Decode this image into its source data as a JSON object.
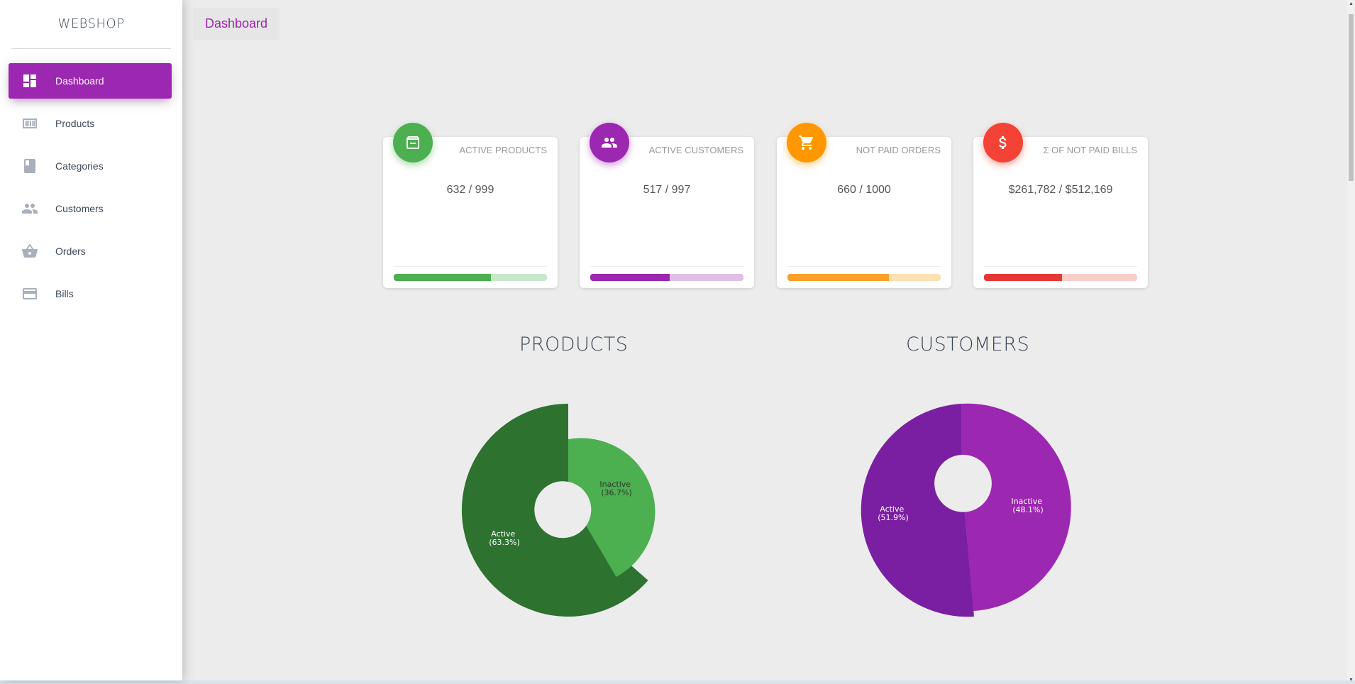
{
  "brand": "WEBSHOP",
  "breadcrumb": "Dashboard",
  "nav": [
    {
      "label": "Dashboard",
      "icon": "dashboard-icon",
      "active": true
    },
    {
      "label": "Products",
      "icon": "barcode-icon",
      "active": false
    },
    {
      "label": "Categories",
      "icon": "book-icon",
      "active": false
    },
    {
      "label": "Customers",
      "icon": "people-icon",
      "active": false
    },
    {
      "label": "Orders",
      "icon": "basket-icon",
      "active": false
    },
    {
      "label": "Bills",
      "icon": "credit-card-icon",
      "active": false
    }
  ],
  "cards": [
    {
      "label": "ACTIVE PRODUCTS",
      "value": "632 / 999",
      "icon": "archive-icon",
      "color": "#4caf50",
      "track": "#c8e6c9",
      "progress": 0.633
    },
    {
      "label": "ACTIVE CUSTOMERS",
      "value": "517 / 997",
      "icon": "people-icon",
      "color": "#9c27b0",
      "track": "#e1bee7",
      "progress": 0.519
    },
    {
      "label": "NOT PAID ORDERS",
      "value": "660 / 1000",
      "icon": "cart-icon",
      "color": "#ff9800",
      "track": "#ffe0b2",
      "progress": 0.66
    },
    {
      "label": "Σ OF NOT PAID BILLS",
      "value": "$261,782 / $512,169",
      "icon": "dollar-icon",
      "color": "#f44336",
      "track": "#ffcdd2",
      "progress": 0.511
    }
  ],
  "chart_data": [
    {
      "type": "pie",
      "title": "PRODUCTS",
      "slices": [
        {
          "label": "Active",
          "pct_label": "(63.3%)",
          "value": 63.3,
          "color": "#2e7230"
        },
        {
          "label": "Inactive",
          "pct_label": "(36.7%)",
          "value": 36.7,
          "color": "#4caf50"
        }
      ]
    },
    {
      "type": "pie",
      "title": "CUSTOMERS",
      "slices": [
        {
          "label": "Active",
          "pct_label": "(51.9%)",
          "value": 51.9,
          "color": "#7b1fa2"
        },
        {
          "label": "Inactive",
          "pct_label": "(48.1%)",
          "value": 48.1,
          "color": "#9c27b0"
        }
      ]
    }
  ]
}
